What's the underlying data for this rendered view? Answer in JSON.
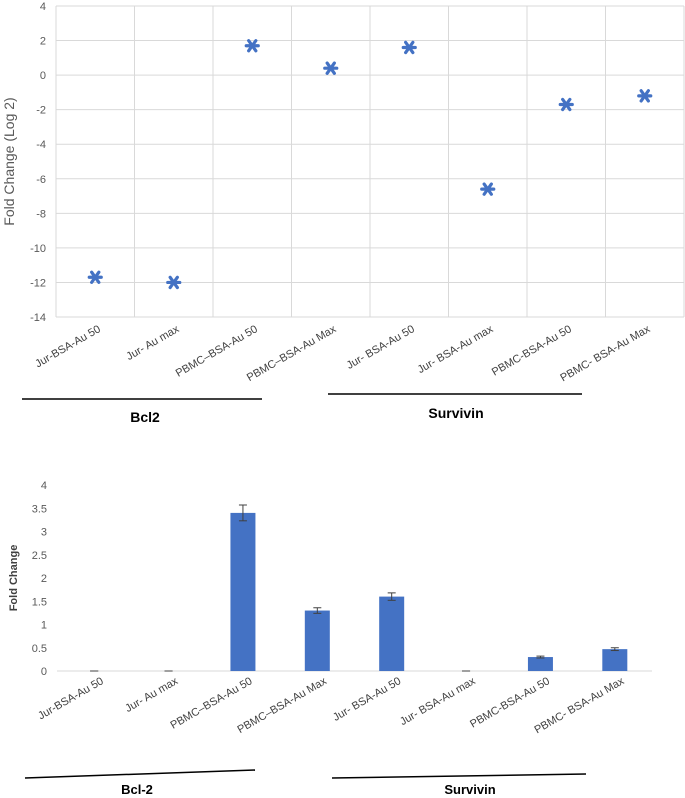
{
  "chart_data": [
    {
      "type": "scatter",
      "title": "",
      "ylabel": "Fold Change (Log 2)",
      "xlabel": "",
      "ylim": [
        -14,
        4
      ],
      "yticks": [
        4,
        2,
        0,
        -2,
        -4,
        -6,
        -8,
        -10,
        -12,
        -14
      ],
      "grid": true,
      "marker": "asterisk",
      "color": "#4472C4",
      "categories": [
        "Jur-BSA-Au  50",
        "Jur- Au max",
        "PBMC–BSA-Au  50",
        "PBMC–BSA-Au Max",
        "Jur- BSA-Au 50",
        "Jur- BSA-Au max",
        "PBMC-BSA-Au 50",
        "PBMC- BSA-Au Max"
      ],
      "values": [
        -11.7,
        -12.0,
        1.7,
        0.4,
        1.6,
        -6.6,
        -1.7,
        -1.2
      ],
      "groups": [
        {
          "label": "Bcl2",
          "categories": [
            0,
            1,
            2,
            3
          ]
        },
        {
          "label": "Survivin",
          "categories": [
            4,
            5,
            6,
            7
          ]
        }
      ]
    },
    {
      "type": "bar",
      "title": "",
      "ylabel": "Fold Change",
      "xlabel": "",
      "ylim": [
        0,
        4
      ],
      "yticks": [
        4,
        3.5,
        3,
        2.5,
        2,
        1.5,
        1,
        0.5,
        0
      ],
      "grid": false,
      "color": "#4472C4",
      "categories": [
        "Jur-BSA-Au  50",
        "Jur- Au max",
        "PBMC–BSA-Au  50",
        "PBMC–BSA-Au Max",
        "Jur- BSA-Au 50",
        "Jur- BSA-Au max",
        "PBMC-BSA-Au 50",
        "PBMC- BSA-Au Max"
      ],
      "values": [
        0,
        0,
        3.4,
        1.3,
        1.6,
        0,
        0.3,
        0.47
      ],
      "errors": [
        0,
        0,
        0.17,
        0.06,
        0.08,
        0,
        0.02,
        0.03
      ],
      "groups": [
        {
          "label": "Bcl-2",
          "categories": [
            0,
            1,
            2,
            3
          ]
        },
        {
          "label": "Survivin",
          "categories": [
            4,
            5,
            6,
            7
          ]
        }
      ]
    }
  ]
}
